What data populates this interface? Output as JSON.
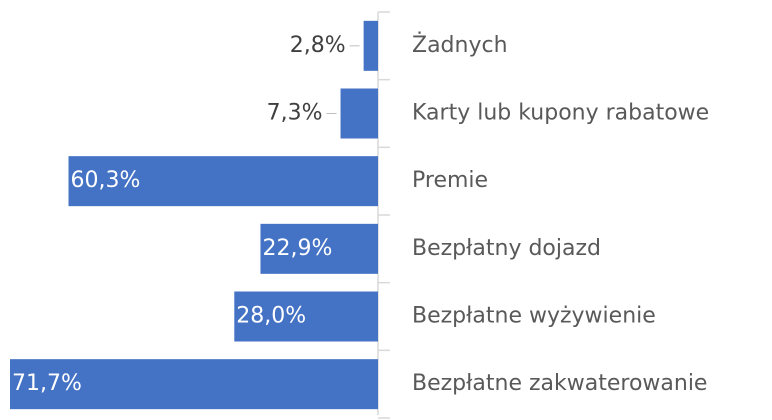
{
  "chart_data": {
    "type": "bar",
    "orientation": "horizontal",
    "categories": [
      "Żadnych",
      "Karty lub kupony rabatowe",
      "Premie",
      "Bezpłatny dojazd",
      "Bezpłatne wyżywienie",
      "Bezpłatne zakwaterowanie"
    ],
    "values": [
      2.8,
      7.3,
      60.3,
      22.9,
      28.0,
      71.7
    ],
    "value_labels": [
      "2,8%",
      "7,3%",
      "60,3%",
      "22,9%",
      "28,0%",
      "71,7%"
    ],
    "color": "#4472c4"
  }
}
